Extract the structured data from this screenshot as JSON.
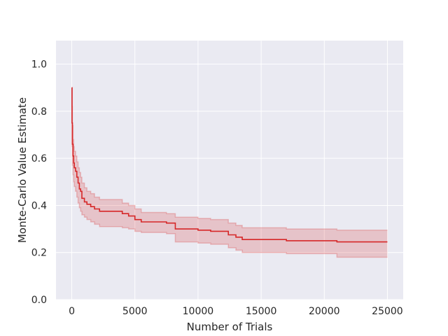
{
  "chart_data": {
    "type": "line",
    "title": "",
    "xlabel": "Number of Trials",
    "ylabel": "Monte-Carlo Value Estimate",
    "xlim": [
      -1250,
      26250
    ],
    "ylim": [
      0.0,
      1.1
    ],
    "xticks": [
      0,
      5000,
      10000,
      15000,
      20000,
      25000
    ],
    "xtick_labels": [
      "0",
      "5000",
      "10000",
      "15000",
      "20000",
      "25000"
    ],
    "yticks": [
      0.0,
      0.2,
      0.4,
      0.6,
      0.8,
      1.0
    ],
    "ytick_labels": [
      "0.0",
      "0.2",
      "0.4",
      "0.6",
      "0.8",
      "1.0"
    ],
    "grid": true,
    "legend": "none",
    "colors": {
      "background": "#eaeaf2",
      "grid": "#ffffff",
      "line": "#d62728",
      "band_fill": "#d62728",
      "band_fill_opacity": 0.2
    },
    "series": [
      {
        "x": [
          0,
          20,
          50,
          100,
          150,
          200,
          300,
          400,
          500,
          600,
          700,
          800,
          1000,
          1200,
          1500,
          1800,
          2200,
          4000,
          4500,
          5000,
          5500,
          7500,
          8200,
          10000,
          11000,
          12400,
          13000,
          13500,
          17000,
          21000,
          25000
        ],
        "mean": [
          0.9,
          0.75,
          0.66,
          0.61,
          0.58,
          0.56,
          0.545,
          0.52,
          0.495,
          0.47,
          0.46,
          0.43,
          0.415,
          0.405,
          0.395,
          0.385,
          0.375,
          0.365,
          0.355,
          0.34,
          0.33,
          0.325,
          0.3,
          0.295,
          0.29,
          0.275,
          0.265,
          0.255,
          0.25,
          0.245,
          0.245
        ],
        "lower": [
          0.9,
          0.65,
          0.57,
          0.53,
          0.5,
          0.48,
          0.46,
          0.435,
          0.41,
          0.39,
          0.375,
          0.36,
          0.35,
          0.34,
          0.33,
          0.32,
          0.31,
          0.305,
          0.3,
          0.29,
          0.285,
          0.28,
          0.245,
          0.24,
          0.235,
          0.22,
          0.21,
          0.2,
          0.195,
          0.18,
          0.18
        ],
        "upper": [
          0.9,
          0.82,
          0.74,
          0.68,
          0.65,
          0.63,
          0.61,
          0.585,
          0.56,
          0.54,
          0.52,
          0.495,
          0.475,
          0.46,
          0.45,
          0.435,
          0.425,
          0.41,
          0.4,
          0.385,
          0.37,
          0.365,
          0.35,
          0.345,
          0.34,
          0.325,
          0.315,
          0.305,
          0.3,
          0.295,
          0.295
        ]
      }
    ]
  }
}
